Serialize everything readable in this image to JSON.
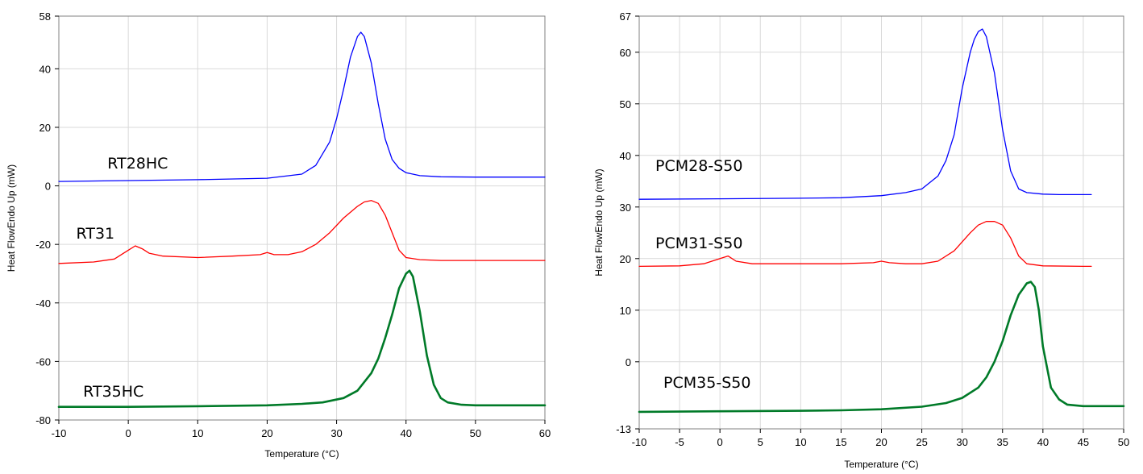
{
  "chart_data": [
    {
      "type": "line",
      "title": "",
      "xlabel": "Temperature (°C)",
      "ylabel": "Heat FlowEndo Up (mW)",
      "xlim": [
        -10,
        60
      ],
      "ylim": [
        -80,
        58
      ],
      "xticks": [
        -10,
        0,
        10,
        20,
        30,
        40,
        50,
        60
      ],
      "yticks": [
        -80,
        -60,
        -40,
        -20,
        0,
        20,
        40,
        58
      ],
      "grid": true,
      "legend": "none",
      "series": [
        {
          "name": "RT28HC",
          "color": "#0000ff",
          "x": [
            -10,
            0,
            10,
            20,
            25,
            27,
            29,
            30,
            31,
            32,
            33,
            33.5,
            34,
            35,
            36,
            37,
            38,
            39,
            40,
            42,
            45,
            50,
            55,
            60
          ],
          "y": [
            1.5,
            1.8,
            2.1,
            2.6,
            4,
            7,
            15,
            23,
            33,
            44,
            51,
            52.5,
            51,
            42,
            28,
            16,
            9,
            6,
            4.5,
            3.5,
            3.1,
            3,
            3,
            3
          ],
          "label_at": [
            -3,
            6
          ]
        },
        {
          "name": "RT31",
          "color": "#ff0000",
          "x": [
            -10,
            -5,
            -2,
            0,
            1,
            2,
            3,
            5,
            10,
            15,
            19,
            20,
            21,
            23,
            25,
            27,
            29,
            31,
            33,
            34,
            35,
            36,
            37,
            38,
            39,
            40,
            42,
            45,
            50,
            60
          ],
          "y": [
            -26.5,
            -26,
            -25,
            -22,
            -20.5,
            -21.5,
            -23,
            -24,
            -24.5,
            -24,
            -23.5,
            -22.8,
            -23.5,
            -23.5,
            -22.5,
            -20,
            -16,
            -11,
            -7,
            -5.5,
            -5,
            -6,
            -10,
            -16,
            -22,
            -24.5,
            -25.2,
            -25.5,
            -25.5,
            -25.5
          ],
          "label_at": [
            -7.5,
            -18
          ]
        },
        {
          "name": "RT35HC",
          "color": "#007a28",
          "x": [
            -10,
            0,
            10,
            20,
            25,
            28,
            31,
            33,
            35,
            36,
            37,
            38,
            39,
            40,
            40.5,
            41,
            42,
            43,
            44,
            45,
            46,
            48,
            50,
            55,
            60
          ],
          "y": [
            -75.5,
            -75.5,
            -75.3,
            -75,
            -74.5,
            -74,
            -72.5,
            -70,
            -64,
            -59,
            -52,
            -44,
            -35,
            -30,
            -29,
            -31,
            -43,
            -58,
            -68,
            -72.5,
            -74,
            -74.8,
            -75,
            -75,
            -75
          ],
          "label_at": [
            -6.5,
            -72
          ]
        }
      ]
    },
    {
      "type": "line",
      "title": "",
      "xlabel": "Temperature (°C)",
      "ylabel": "Heat FlowEndo Up (mW)",
      "xlim": [
        -10,
        50
      ],
      "ylim": [
        -13,
        67
      ],
      "xticks": [
        -10,
        -5,
        0,
        5,
        10,
        15,
        20,
        25,
        30,
        35,
        40,
        45,
        50
      ],
      "yticks": [
        -13,
        0,
        10,
        20,
        30,
        40,
        50,
        60,
        67
      ],
      "grid": true,
      "legend": "none",
      "series": [
        {
          "name": "PCM28-S50",
          "color": "#0000ff",
          "x": [
            -10,
            0,
            10,
            15,
            20,
            23,
            25,
            27,
            28,
            29,
            30,
            31,
            31.5,
            32,
            32.5,
            33,
            34,
            35,
            36,
            37,
            38,
            40,
            42,
            45,
            46
          ],
          "y": [
            31.5,
            31.6,
            31.7,
            31.8,
            32.2,
            32.8,
            33.5,
            36,
            39,
            44,
            53,
            60,
            62.5,
            64,
            64.5,
            63,
            56,
            45,
            37,
            33.5,
            32.8,
            32.5,
            32.4,
            32.4,
            32.4
          ],
          "label_at": [
            -8,
            37
          ]
        },
        {
          "name": "PCM31-S50",
          "color": "#ff0000",
          "x": [
            -10,
            -5,
            -2,
            0,
            1,
            2,
            4,
            10,
            15,
            19,
            20,
            21,
            23,
            25,
            27,
            29,
            31,
            32,
            33,
            34,
            35,
            36,
            37,
            38,
            40,
            45,
            46
          ],
          "y": [
            18.5,
            18.6,
            19,
            20,
            20.5,
            19.5,
            19,
            19,
            19,
            19.2,
            19.5,
            19.2,
            19,
            19,
            19.5,
            21.5,
            25,
            26.5,
            27.2,
            27.2,
            26.5,
            24,
            20.5,
            19,
            18.6,
            18.5,
            18.5
          ],
          "label_at": [
            -8,
            22
          ]
        },
        {
          "name": "PCM35-S50",
          "color": "#007a28",
          "x": [
            -10,
            0,
            10,
            15,
            20,
            25,
            28,
            30,
            32,
            33,
            34,
            35,
            36,
            37,
            38,
            38.5,
            39,
            39.5,
            40,
            41,
            42,
            43,
            45,
            47,
            50
          ],
          "y": [
            -9.7,
            -9.6,
            -9.5,
            -9.4,
            -9.2,
            -8.7,
            -8,
            -7,
            -5,
            -3,
            0,
            4,
            9,
            13,
            15.2,
            15.5,
            14.5,
            10,
            3,
            -5,
            -7.3,
            -8.3,
            -8.6,
            -8.6,
            -8.6
          ],
          "label_at": [
            -7,
            -5
          ]
        }
      ]
    }
  ]
}
